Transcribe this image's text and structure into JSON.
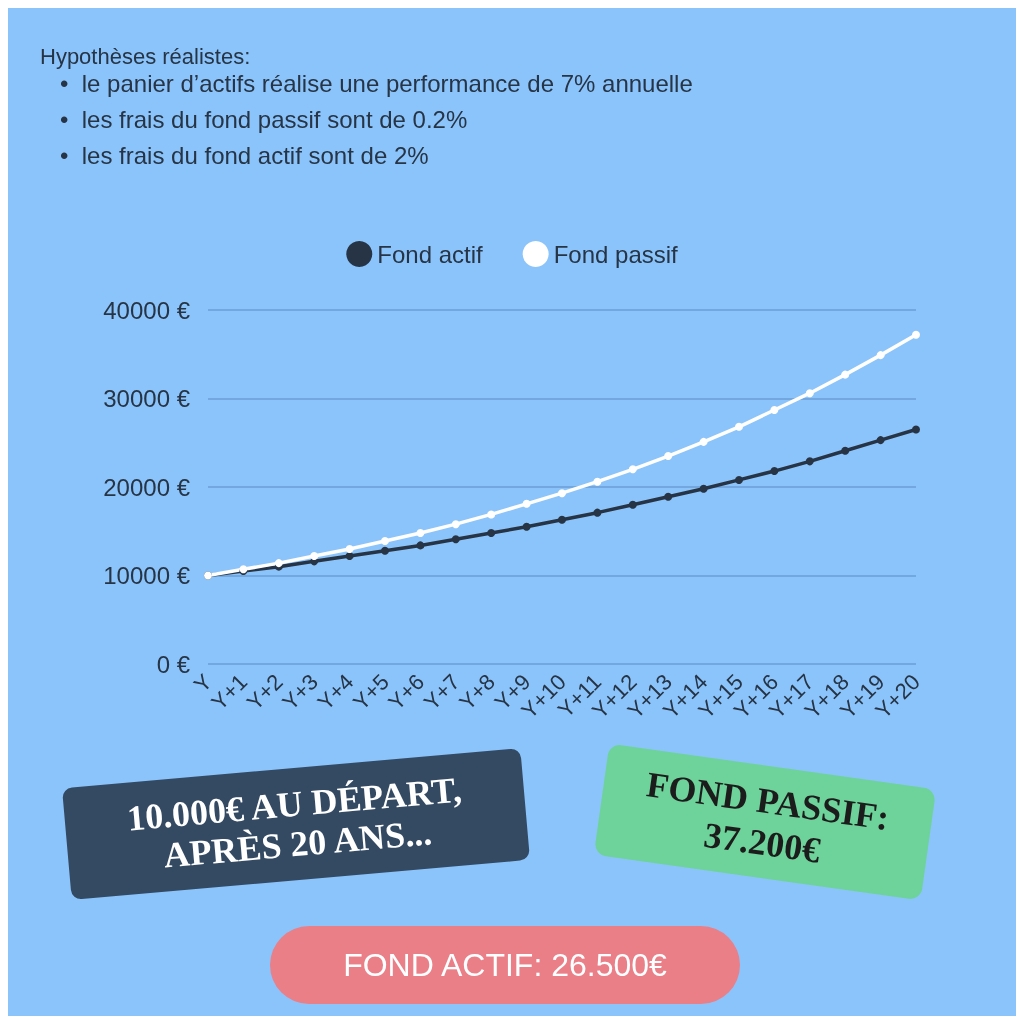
{
  "chart_data": {
    "type": "line",
    "title": "Hypothèses réalistes:",
    "annotations": [
      "•  le panier d’actifs réalise une performance de 7% annuelle",
      "•  les frais du fond passif sont de 0.2%",
      "•  les frais du fond actif sont de 2%",
      "10.000€ AU DÉPART, APRÈS 20 ANS...",
      "FOND PASSIF: 37.200€",
      "FOND ACTIF: 26.500€"
    ],
    "categories": [
      "Y",
      "Y+1",
      "Y+2",
      "Y+3",
      "Y+4",
      "Y+5",
      "Y+6",
      "Y+7",
      "Y+8",
      "Y+9",
      "Y+10",
      "Y+11",
      "Y+12",
      "Y+13",
      "Y+14",
      "Y+15",
      "Y+16",
      "Y+17",
      "Y+18",
      "Y+19",
      "Y+20"
    ],
    "series": [
      {
        "name": "Fond actif",
        "color": "#263445",
        "values": [
          10000,
          10500,
          11000,
          11600,
          12200,
          12800,
          13400,
          14100,
          14800,
          15500,
          16300,
          17100,
          18000,
          18900,
          19800,
          20800,
          21800,
          22900,
          24100,
          25300,
          26500
        ]
      },
      {
        "name": "Fond passif",
        "color": "#ffffff",
        "values": [
          10000,
          10700,
          11400,
          12200,
          13000,
          13900,
          14800,
          15800,
          16900,
          18100,
          19300,
          20600,
          22000,
          23500,
          25100,
          26800,
          28700,
          30600,
          32700,
          34900,
          37200
        ]
      }
    ],
    "ylim": [
      0,
      40000
    ],
    "yticks": [
      {
        "value": 0,
        "label": "0 €"
      },
      {
        "value": 10000,
        "label": "10000 €"
      },
      {
        "value": 20000,
        "label": "20000 €"
      },
      {
        "value": 30000,
        "label": "30000 €"
      },
      {
        "value": 40000,
        "label": "40000 €"
      }
    ],
    "grid": "y",
    "legend": "top",
    "marker": "circle",
    "line_style": "solid"
  }
}
